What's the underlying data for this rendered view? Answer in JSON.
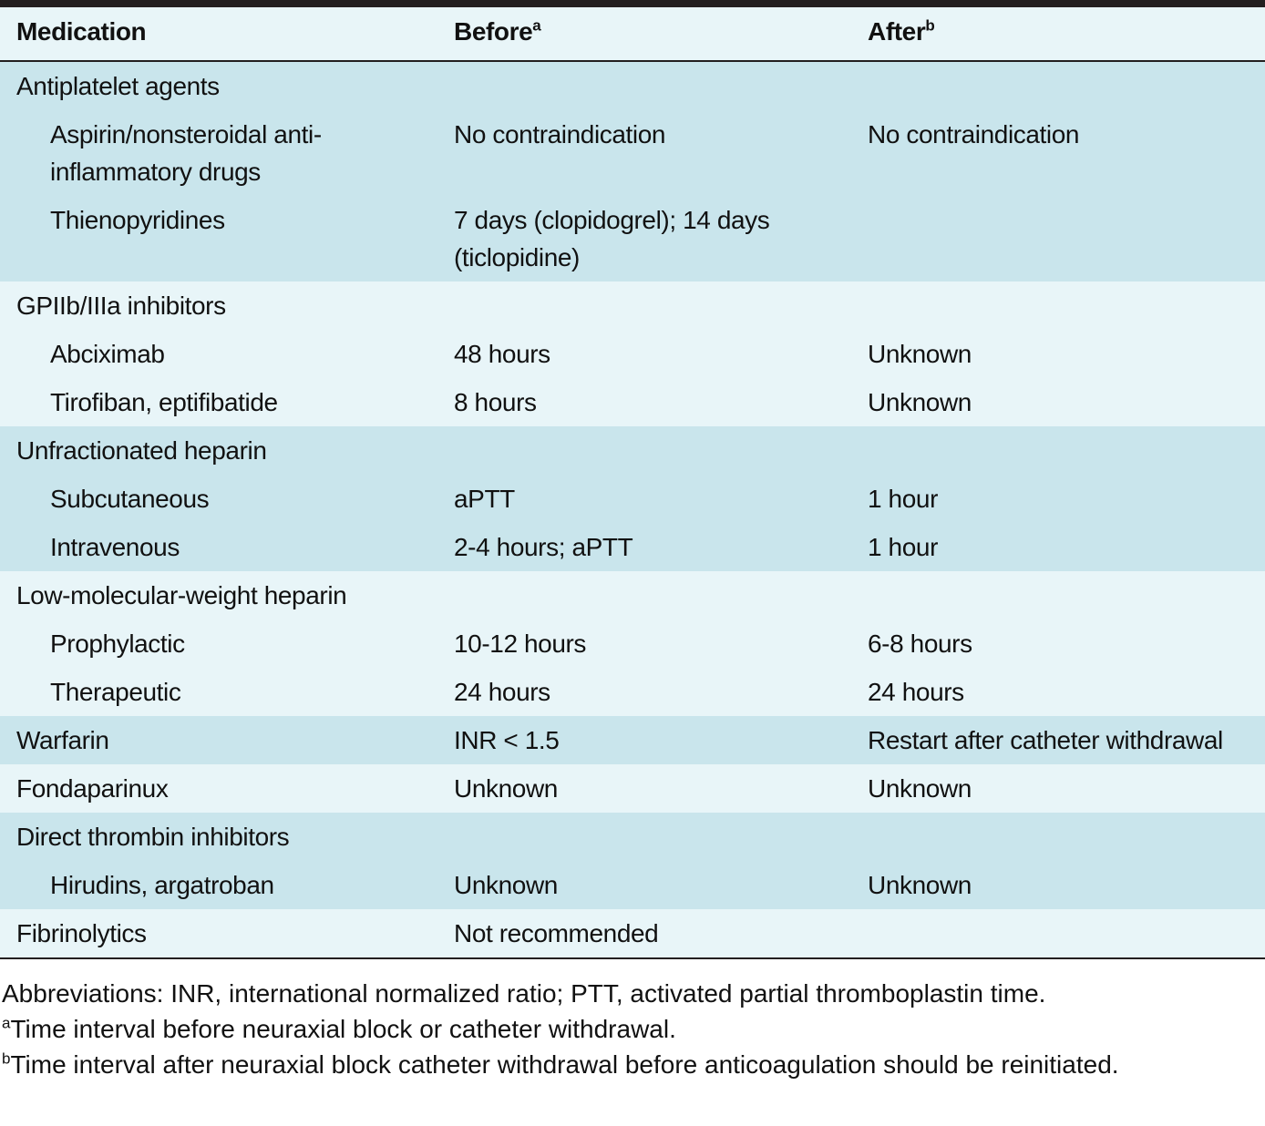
{
  "header": {
    "medication": "Medication",
    "before": {
      "text": "Before",
      "mark": "a"
    },
    "after": {
      "text": "After",
      "mark": "b"
    }
  },
  "groups": [
    {
      "name": "Antiplatelet agents",
      "items": [
        {
          "name": "Aspirin/nonsteroidal anti-inflammatory drugs",
          "before": "No contraindication",
          "after": "No contraindication"
        },
        {
          "name": "Thienopyridines",
          "before": "7 days (clopidogrel); 14 days (ticlopidine)"
        }
      ]
    },
    {
      "name": "GPIIb/IIIa inhibitors",
      "items": [
        {
          "name": "Abciximab",
          "before": "48 hours",
          "after": "Unknown"
        },
        {
          "name": "Tirofiban, eptifibatide",
          "before": "8 hours",
          "after": "Unknown"
        }
      ]
    },
    {
      "name": "Unfractionated heparin",
      "items": [
        {
          "name": "Subcutaneous",
          "before": "aPTT",
          "after": "1 hour"
        },
        {
          "name": "Intravenous",
          "before": "2-4 hours; aPTT",
          "after": "1 hour"
        }
      ]
    },
    {
      "name": "Low-molecular-weight heparin",
      "items": [
        {
          "name": "Prophylactic",
          "before": "10-12 hours",
          "after": "6-8 hours"
        },
        {
          "name": "Therapeutic",
          "before": "24 hours",
          "after": "24 hours"
        }
      ]
    },
    {
      "name": "Warfarin",
      "before": "INR < 1.5",
      "after": "Restart after catheter withdrawal"
    },
    {
      "name": "Fondaparinux",
      "before": "Unknown",
      "after": "Unknown"
    },
    {
      "name": "Direct thrombin inhibitors",
      "items": [
        {
          "name": "Hirudins, argatroban",
          "before": "Unknown",
          "after": "Unknown"
        }
      ]
    },
    {
      "name": "Fibrinolytics",
      "before": "Not recommended"
    }
  ],
  "footnotes": {
    "abbreviations": "Abbreviations: INR, international normalized ratio; PTT, activated partial thromboplastin time.",
    "notes": [
      {
        "mark": "a",
        "text": "Time interval before neuraxial block or catheter withdrawal."
      },
      {
        "mark": "b",
        "text": "Time interval after neuraxial block catheter withdrawal before anticoagulation should be reinitiated."
      }
    ]
  }
}
